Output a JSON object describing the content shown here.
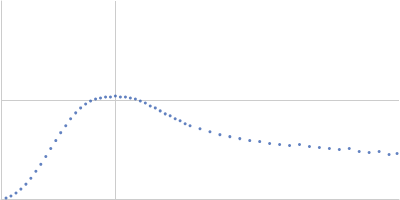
{
  "chart_data": {
    "type": "scatter",
    "color": "#3a62b0",
    "marker": "circle",
    "grid": true,
    "tick_labels": false,
    "xlim": [
      0,
      3.48
    ],
    "xticks": [
      1
    ],
    "ylim": [
      0,
      2
    ],
    "yticks": [
      1
    ],
    "x": [
      0.044,
      0.087,
      0.131,
      0.174,
      0.218,
      0.261,
      0.305,
      0.348,
      0.392,
      0.435,
      0.479,
      0.522,
      0.566,
      0.609,
      0.653,
      0.696,
      0.74,
      0.783,
      0.827,
      0.87,
      0.914,
      0.957,
      1.0,
      1.044,
      1.088,
      1.131,
      1.175,
      1.218,
      1.262,
      1.305,
      1.349,
      1.392,
      1.436,
      1.479,
      1.523,
      1.566,
      1.61,
      1.653,
      1.74,
      1.827,
      1.914,
      2.001,
      2.088,
      2.175,
      2.262,
      2.349,
      2.436,
      2.523,
      2.61,
      2.697,
      2.784,
      2.871,
      2.958,
      3.045,
      3.132,
      3.219,
      3.306,
      3.393,
      3.463
    ],
    "values": [
      0.01,
      0.03,
      0.06,
      0.1,
      0.15,
      0.21,
      0.28,
      0.35,
      0.43,
      0.51,
      0.59,
      0.67,
      0.74,
      0.81,
      0.87,
      0.92,
      0.96,
      0.99,
      1.01,
      1.02,
      1.03,
      1.03,
      1.04,
      1.03,
      1.03,
      1.02,
      1.01,
      0.99,
      0.97,
      0.94,
      0.92,
      0.89,
      0.86,
      0.84,
      0.81,
      0.79,
      0.76,
      0.74,
      0.71,
      0.68,
      0.65,
      0.63,
      0.61,
      0.59,
      0.58,
      0.56,
      0.55,
      0.54,
      0.55,
      0.53,
      0.52,
      0.51,
      0.5,
      0.51,
      0.48,
      0.47,
      0.48,
      0.45,
      0.46
    ]
  }
}
